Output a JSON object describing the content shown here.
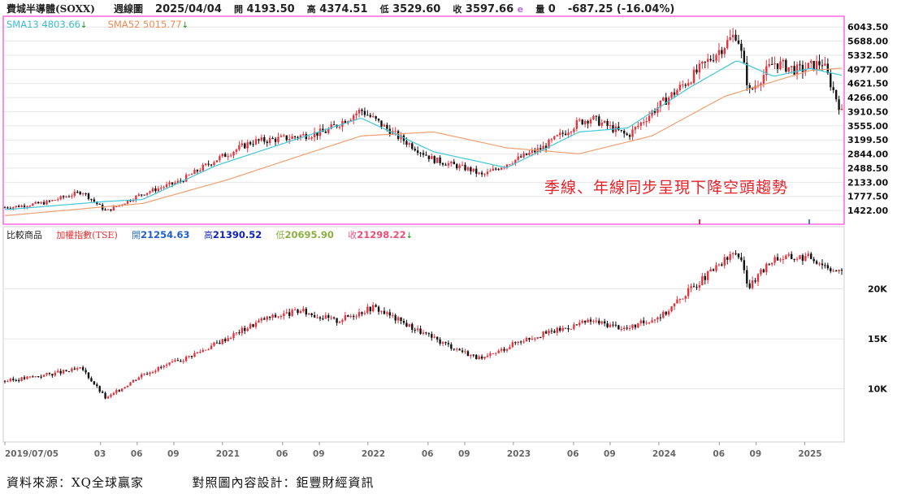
{
  "header": {
    "symbol": "費城半導體(SOXX)",
    "period": "週線圖",
    "date": "2025/04/04",
    "open_label": "開",
    "open": "4193.50",
    "high_label": "高",
    "high": "4374.51",
    "low_label": "低",
    "low": "3529.60",
    "close_label": "收",
    "close": "3597.66",
    "close_marker": "e",
    "volume_label": "量",
    "volume": "0",
    "change": "-687.25 (-16.04%)"
  },
  "indicators": {
    "sma13_label": "SMA13",
    "sma13_value": "4803.66",
    "sma52_label": "SMA52",
    "sma52_value": "5015.77",
    "down_arrow": "↓"
  },
  "compare": {
    "label": "比較商品",
    "name": "加權指數(TSE)",
    "open_label": "開",
    "open": "21254.63",
    "high_label": "高",
    "high": "21390.52",
    "low_label": "低",
    "low": "20695.90",
    "close_label": "收",
    "close": "21298.22",
    "down_arrow": "↓"
  },
  "annotation": "季線、年線同步呈現下降空頭趨勢",
  "footer": {
    "source": "資料來源：XQ全球贏家",
    "design": "對照圖內容設計：鉅豐財經資訊"
  },
  "colors": {
    "up": "#e8323c",
    "down": "#111111",
    "sma13": "#40c8d8",
    "sma52": "#f0a070",
    "frame": "#ff66dd",
    "grid": "#e6e6e6"
  },
  "chart_data": [
    {
      "type": "candlestick",
      "name": "費城半導體(SOXX)",
      "y_ticks": [
        "6043.50",
        "5688.00",
        "5332.50",
        "4977.00",
        "4621.50",
        "4266.00",
        "3910.50",
        "3555.00",
        "3199.50",
        "2844.00",
        "2488.50",
        "2133.00",
        "1777.50",
        "1422.00"
      ],
      "ylim": [
        1240,
        6150
      ],
      "x_tick_labels": [
        "2019/07/05",
        "03",
        "06",
        "09",
        "2021",
        "06",
        "09",
        "2022",
        "06",
        "09",
        "2023",
        "06",
        "09",
        "2024",
        "06",
        "09",
        "2025"
      ],
      "xlim": [
        "2019-07-05",
        "2025-04-04"
      ],
      "series": [
        {
          "name": "SOXX",
          "x": [
            "2019-07",
            "2019-10",
            "2020-01",
            "2020-03",
            "2020-06",
            "2020-09",
            "2020-12",
            "2021-03",
            "2021-06",
            "2021-09",
            "2021-12",
            "2022-03",
            "2022-06",
            "2022-09",
            "2022-10",
            "2022-12",
            "2023-03",
            "2023-06",
            "2023-07",
            "2023-10",
            "2023-12",
            "2024-03",
            "2024-07",
            "2024-08",
            "2024-10",
            "2024-12",
            "2025-02",
            "2025-04"
          ],
          "y": [
            1500,
            1620,
            1900,
            1400,
            1850,
            2150,
            2700,
            3150,
            3250,
            3400,
            3950,
            3300,
            2700,
            2450,
            2300,
            2600,
            3000,
            3650,
            3750,
            3300,
            3900,
            4700,
            5900,
            4400,
            5150,
            4950,
            5150,
            3600
          ]
        },
        {
          "name": "SMA13",
          "x": [
            "2019-07",
            "2020-03",
            "2020-06",
            "2020-12",
            "2021-06",
            "2021-12",
            "2022-06",
            "2022-12",
            "2023-06",
            "2023-10",
            "2024-03",
            "2024-07",
            "2024-10",
            "2025-01",
            "2025-04"
          ],
          "y": [
            1450,
            1650,
            1700,
            2550,
            3150,
            3750,
            2900,
            2500,
            3400,
            3500,
            4500,
            5200,
            4800,
            5000,
            4803.66
          ]
        },
        {
          "name": "SMA52",
          "x": [
            "2019-07",
            "2020-06",
            "2021-01",
            "2021-06",
            "2021-12",
            "2022-06",
            "2022-12",
            "2023-06",
            "2023-12",
            "2024-06",
            "2025-01",
            "2025-04"
          ],
          "y": [
            1300,
            1600,
            2200,
            2700,
            3300,
            3400,
            3000,
            2850,
            3300,
            4300,
            4950,
            5015.77
          ]
        }
      ]
    },
    {
      "type": "candlestick",
      "name": "加權指數(TSE)",
      "y_ticks": [
        "20K",
        "15K",
        "10K"
      ],
      "ylim": [
        5000,
        25500
      ],
      "series": [
        {
          "name": "TSE",
          "x": [
            "2019-07",
            "2019-12",
            "2020-01",
            "2020-03",
            "2020-06",
            "2020-09",
            "2020-12",
            "2021-04",
            "2021-07",
            "2021-10",
            "2022-01",
            "2022-06",
            "2022-10",
            "2023-01",
            "2023-07",
            "2023-10",
            "2024-01",
            "2024-03",
            "2024-07",
            "2024-08",
            "2024-10",
            "2025-01",
            "2025-04"
          ],
          "y": [
            10800,
            11800,
            12000,
            9000,
            11500,
            12800,
            14500,
            17000,
            17800,
            16800,
            18200,
            15000,
            12900,
            14800,
            16800,
            16000,
            17500,
            19800,
            23800,
            20200,
            23100,
            23200,
            21298.22
          ]
        }
      ]
    }
  ]
}
